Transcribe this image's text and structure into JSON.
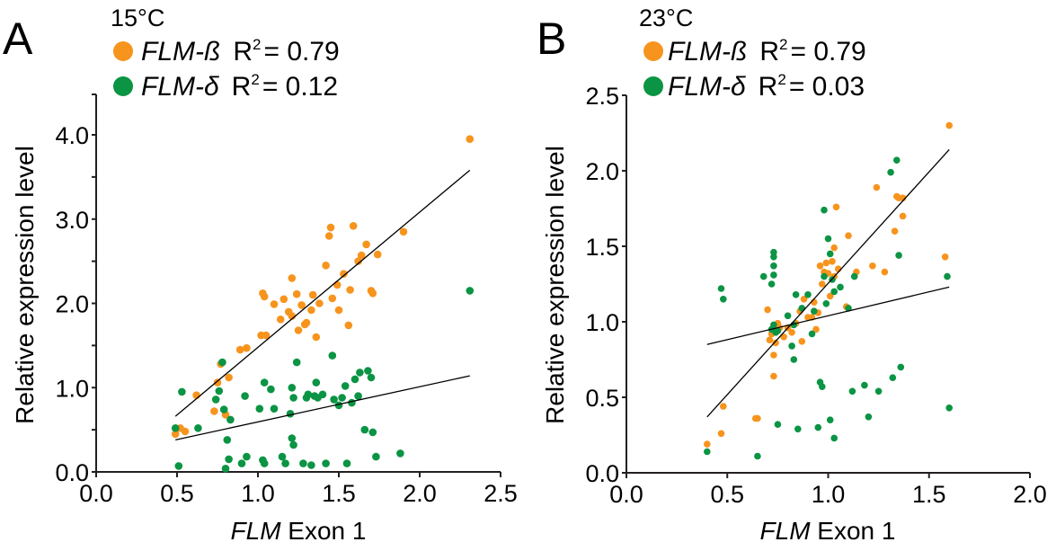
{
  "chart_data": [
    {
      "type": "scatter",
      "panel_label": "A",
      "title": "15°C",
      "xlabel_italic": "FLM",
      "xlabel_rest": " Exon 1",
      "ylabel": "Relative expression level",
      "xlim": [
        0.0,
        2.5
      ],
      "ylim": [
        0.0,
        4.0
      ],
      "x_ticks": [
        0.0,
        0.5,
        1.0,
        1.5,
        2.0,
        2.5
      ],
      "x_tick_labels": [
        "0.0",
        "0.5",
        "1.0",
        "1.5",
        "2.0",
        "2.5"
      ],
      "y_ticks": [
        0.0,
        1.0,
        2.0,
        3.0,
        4.0
      ],
      "y_tick_labels": [
        "0.0",
        "1.0",
        "2.0",
        "3.0",
        "4.0"
      ],
      "y_minor_ticks": [
        0.5,
        1.5,
        2.5,
        3.5
      ],
      "grid": false,
      "legend_position": "top-left",
      "series": [
        {
          "name": "FLM-ß",
          "legend_r2": "R² = 0.79",
          "r2_label": "R",
          "r2_sup": "2",
          "r2_value": "= 0.79",
          "color": "#f7941d",
          "fit": {
            "x": [
              0.49,
              2.31
            ],
            "y": [
              0.66,
              3.58
            ]
          },
          "points": [
            [
              0.49,
              0.45
            ],
            [
              0.52,
              0.52
            ],
            [
              0.55,
              0.48
            ],
            [
              0.62,
              0.91
            ],
            [
              0.73,
              0.72
            ],
            [
              0.75,
              1.06
            ],
            [
              0.77,
              1.28
            ],
            [
              0.8,
              0.68
            ],
            [
              0.82,
              1.12
            ],
            [
              0.89,
              1.45
            ],
            [
              0.93,
              1.47
            ],
            [
              1.02,
              1.62
            ],
            [
              1.03,
              2.12
            ],
            [
              1.04,
              2.08
            ],
            [
              1.05,
              1.62
            ],
            [
              1.1,
              1.99
            ],
            [
              1.14,
              1.81
            ],
            [
              1.16,
              2.05
            ],
            [
              1.19,
              1.9
            ],
            [
              1.21,
              2.3
            ],
            [
              1.21,
              1.85
            ],
            [
              1.24,
              2.11
            ],
            [
              1.25,
              1.68
            ],
            [
              1.27,
              1.98
            ],
            [
              1.29,
              1.75
            ],
            [
              1.3,
              1.77
            ],
            [
              1.33,
              1.92
            ],
            [
              1.34,
              2.1
            ],
            [
              1.36,
              1.6
            ],
            [
              1.38,
              2.0
            ],
            [
              1.42,
              2.45
            ],
            [
              1.44,
              2.8
            ],
            [
              1.45,
              2.9
            ],
            [
              1.46,
              2.06
            ],
            [
              1.49,
              2.22
            ],
            [
              1.5,
              1.92
            ],
            [
              1.53,
              2.35
            ],
            [
              1.56,
              1.74
            ],
            [
              1.57,
              2.16
            ],
            [
              1.59,
              2.92
            ],
            [
              1.62,
              2.5
            ],
            [
              1.64,
              2.57
            ],
            [
              1.67,
              2.7
            ],
            [
              1.7,
              2.15
            ],
            [
              1.71,
              2.12
            ],
            [
              1.74,
              2.58
            ],
            [
              1.9,
              2.85
            ],
            [
              2.31,
              3.95
            ]
          ]
        },
        {
          "name": "FLM-δ",
          "legend_r2": "R² = 0.12",
          "r2_label": "R",
          "r2_sup": "2",
          "r2_value": "= 0.12",
          "color": "#0b9444",
          "fit": {
            "x": [
              0.49,
              2.31
            ],
            "y": [
              0.38,
              1.14
            ]
          },
          "points": [
            [
              0.49,
              0.52
            ],
            [
              0.51,
              0.07
            ],
            [
              0.53,
              0.95
            ],
            [
              0.63,
              0.52
            ],
            [
              0.74,
              0.86
            ],
            [
              0.76,
              0.96
            ],
            [
              0.78,
              1.3
            ],
            [
              0.79,
              0.74
            ],
            [
              0.8,
              0.04
            ],
            [
              0.81,
              0.38
            ],
            [
              0.82,
              0.15
            ],
            [
              0.83,
              0.62
            ],
            [
              0.9,
              0.1
            ],
            [
              0.92,
              0.9
            ],
            [
              0.93,
              0.18
            ],
            [
              1.01,
              0.75
            ],
            [
              1.03,
              0.14
            ],
            [
              1.04,
              0.1
            ],
            [
              1.04,
              1.06
            ],
            [
              1.08,
              0.98
            ],
            [
              1.1,
              0.75
            ],
            [
              1.15,
              0.18
            ],
            [
              1.17,
              0.1
            ],
            [
              1.2,
              0.69
            ],
            [
              1.21,
              1.0
            ],
            [
              1.21,
              0.4
            ],
            [
              1.22,
              0.32
            ],
            [
              1.22,
              0.88
            ],
            [
              1.24,
              1.3
            ],
            [
              1.28,
              0.1
            ],
            [
              1.3,
              0.88
            ],
            [
              1.31,
              0.92
            ],
            [
              1.33,
              0.08
            ],
            [
              1.35,
              0.9
            ],
            [
              1.36,
              1.06
            ],
            [
              1.37,
              0.88
            ],
            [
              1.4,
              0.92
            ],
            [
              1.42,
              0.1
            ],
            [
              1.46,
              1.38
            ],
            [
              1.47,
              0.86
            ],
            [
              1.5,
              0.79
            ],
            [
              1.52,
              0.88
            ],
            [
              1.54,
              1.02
            ],
            [
              1.55,
              0.1
            ],
            [
              1.58,
              0.82
            ],
            [
              1.6,
              1.1
            ],
            [
              1.62,
              0.9
            ],
            [
              1.63,
              1.18
            ],
            [
              1.66,
              0.5
            ],
            [
              1.68,
              1.2
            ],
            [
              1.7,
              1.12
            ],
            [
              1.71,
              0.47
            ],
            [
              1.73,
              0.18
            ],
            [
              1.88,
              0.22
            ],
            [
              2.31,
              2.15
            ]
          ]
        }
      ]
    },
    {
      "type": "scatter",
      "panel_label": "B",
      "title": "23°C",
      "xlabel_italic": "FLM",
      "xlabel_rest": " Exon 1",
      "ylabel": "Relative expression level",
      "xlim": [
        0.0,
        2.0
      ],
      "ylim": [
        0.0,
        2.5
      ],
      "x_ticks": [
        0.0,
        0.5,
        1.0,
        1.5,
        2.0
      ],
      "x_tick_labels": [
        "0.0",
        "0.5",
        "1.0",
        "1.5",
        "2.0"
      ],
      "y_ticks": [
        0.0,
        0.5,
        1.0,
        1.5,
        2.0,
        2.5
      ],
      "y_tick_labels": [
        "0.0",
        "0.5",
        "1.0",
        "1.5",
        "2.0",
        "2.5"
      ],
      "y_minor_ticks": [],
      "grid": false,
      "legend_position": "top-left",
      "series": [
        {
          "name": "FLM-ß",
          "legend_r2": "R² = 0.79",
          "r2_label": "R",
          "r2_sup": "2",
          "r2_value": "= 0.79",
          "color": "#f7941d",
          "fit": {
            "x": [
              0.4,
              1.6
            ],
            "y": [
              0.37,
              2.14
            ]
          },
          "points": [
            [
              0.4,
              0.19
            ],
            [
              0.47,
              0.26
            ],
            [
              0.48,
              0.44
            ],
            [
              0.64,
              0.36
            ],
            [
              0.65,
              0.36
            ],
            [
              0.7,
              1.08
            ],
            [
              0.71,
              0.88
            ],
            [
              0.72,
              0.92
            ],
            [
              0.73,
              0.78
            ],
            [
              0.73,
              0.64
            ],
            [
              0.74,
              0.93
            ],
            [
              0.74,
              0.86
            ],
            [
              0.75,
              0.99
            ],
            [
              0.76,
              0.96
            ],
            [
              0.78,
              0.9
            ],
            [
              0.8,
              0.96
            ],
            [
              0.82,
              0.93
            ],
            [
              0.84,
              0.99
            ],
            [
              0.86,
              1.07
            ],
            [
              0.87,
              0.87
            ],
            [
              0.88,
              1.15
            ],
            [
              0.9,
              1.03
            ],
            [
              0.92,
              1.03
            ],
            [
              0.93,
              1.13
            ],
            [
              0.94,
              0.95
            ],
            [
              0.95,
              1.06
            ],
            [
              0.96,
              1.37
            ],
            [
              0.97,
              1.25
            ],
            [
              0.98,
              1.33
            ],
            [
              0.99,
              1.39
            ],
            [
              1.0,
              1.32
            ],
            [
              1.01,
              1.17
            ],
            [
              1.02,
              1.4
            ],
            [
              1.03,
              1.3
            ],
            [
              1.03,
              1.49
            ],
            [
              1.04,
              1.76
            ],
            [
              1.05,
              1.35
            ],
            [
              1.09,
              1.1
            ],
            [
              1.1,
              1.57
            ],
            [
              1.14,
              1.33
            ],
            [
              1.22,
              1.37
            ],
            [
              1.24,
              1.89
            ],
            [
              1.28,
              1.33
            ],
            [
              1.33,
              1.6
            ],
            [
              1.34,
              1.83
            ],
            [
              1.35,
              1.82
            ],
            [
              1.37,
              1.82
            ],
            [
              1.37,
              1.7
            ],
            [
              1.58,
              1.43
            ],
            [
              1.6,
              2.3
            ]
          ]
        },
        {
          "name": "FLM-δ",
          "legend_r2": "R² = 0.03",
          "r2_label": "R",
          "r2_sup": "2",
          "r2_value": "= 0.03",
          "color": "#0b9444",
          "fit": {
            "x": [
              0.4,
              1.6
            ],
            "y": [
              0.85,
              1.23
            ]
          },
          "points": [
            [
              0.4,
              0.14
            ],
            [
              0.47,
              1.22
            ],
            [
              0.48,
              1.15
            ],
            [
              0.65,
              0.11
            ],
            [
              0.68,
              1.3
            ],
            [
              0.73,
              1.46
            ],
            [
              0.73,
              1.43
            ],
            [
              0.73,
              1.37
            ],
            [
              0.73,
              1.31
            ],
            [
              0.72,
              1.25
            ],
            [
              0.72,
              0.95
            ],
            [
              0.73,
              0.98
            ],
            [
              0.74,
              0.93
            ],
            [
              0.75,
              0.94
            ],
            [
              0.75,
              0.32
            ],
            [
              0.8,
              1.04
            ],
            [
              0.82,
              0.84
            ],
            [
              0.83,
              0.98
            ],
            [
              0.83,
              0.75
            ],
            [
              0.84,
              1.18
            ],
            [
              0.85,
              0.29
            ],
            [
              0.87,
              1.09
            ],
            [
              0.9,
              1.18
            ],
            [
              0.92,
              0.92
            ],
            [
              0.93,
              1.07
            ],
            [
              0.95,
              0.3
            ],
            [
              0.96,
              0.6
            ],
            [
              0.97,
              0.57
            ],
            [
              0.98,
              1.3
            ],
            [
              0.98,
              1.74
            ],
            [
              0.99,
              1.12
            ],
            [
              1.0,
              1.55
            ],
            [
              1.01,
              1.45
            ],
            [
              1.01,
              0.35
            ],
            [
              1.02,
              1.28
            ],
            [
              1.03,
              0.23
            ],
            [
              1.03,
              1.2
            ],
            [
              1.06,
              1.23
            ],
            [
              1.1,
              1.09
            ],
            [
              1.12,
              0.54
            ],
            [
              1.13,
              1.3
            ],
            [
              1.18,
              0.58
            ],
            [
              1.2,
              0.37
            ],
            [
              1.25,
              0.54
            ],
            [
              1.31,
              1.99
            ],
            [
              1.32,
              0.63
            ],
            [
              1.34,
              2.07
            ],
            [
              1.36,
              0.7
            ],
            [
              1.35,
              1.44
            ],
            [
              1.59,
              1.3
            ],
            [
              1.6,
              0.43
            ]
          ]
        }
      ]
    }
  ]
}
